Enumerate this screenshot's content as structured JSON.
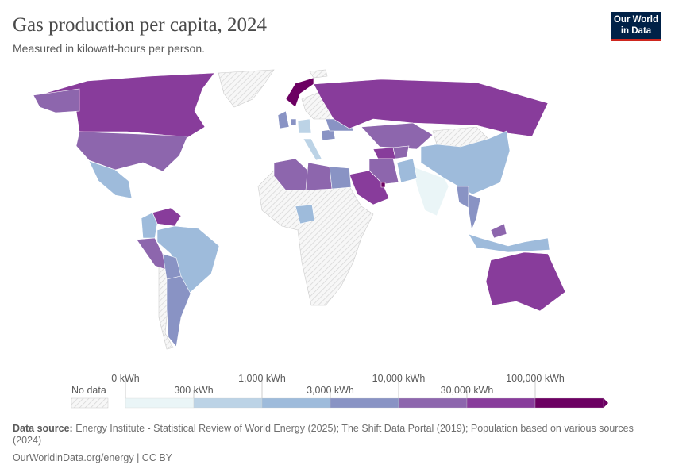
{
  "header": {
    "title": "Gas production per capita, 2024",
    "subtitle": "Measured in kilowatt-hours per person.",
    "logo_line1": "Our World",
    "logo_line2": "in Data"
  },
  "chart_data": {
    "type": "map",
    "title": "Gas production per capita, 2024",
    "subtitle": "Measured in kilowatt-hours per person.",
    "unit": "kWh",
    "no_data_label": "No data",
    "bins": [
      {
        "from": "0 kWh",
        "to": "300 kWh",
        "color": "#eaf5f7"
      },
      {
        "from": "300 kWh",
        "to": "1,000 kWh",
        "color": "#bcd3e6"
      },
      {
        "from": "1,000 kWh",
        "to": "3,000 kWh",
        "color": "#9ebbdb"
      },
      {
        "from": "3,000 kWh",
        "to": "10,000 kWh",
        "color": "#8993c4"
      },
      {
        "from": "10,000 kWh",
        "to": "30,000 kWh",
        "color": "#8d66ad"
      },
      {
        "from": "30,000 kWh",
        "to": "100,000 kWh",
        "color": "#883c9b"
      },
      {
        "from": "100,000 kWh",
        "to": "",
        "color": "#6c0062"
      }
    ],
    "tick_labels_top": [
      "0 kWh",
      "1,000 kWh",
      "10,000 kWh",
      "100,000 kWh"
    ],
    "tick_labels_bottom": [
      "300 kWh",
      "3,000 kWh",
      "30,000 kWh"
    ],
    "countries": [
      {
        "name": "Canada",
        "bin": 5
      },
      {
        "name": "United States",
        "bin": 4
      },
      {
        "name": "Mexico",
        "bin": 2
      },
      {
        "name": "Venezuela",
        "bin": 5
      },
      {
        "name": "Colombia",
        "bin": 2
      },
      {
        "name": "Brazil",
        "bin": 2
      },
      {
        "name": "Peru",
        "bin": 4
      },
      {
        "name": "Bolivia",
        "bin": 3
      },
      {
        "name": "Argentina",
        "bin": 3
      },
      {
        "name": "Norway",
        "bin": 6
      },
      {
        "name": "United Kingdom",
        "bin": 3
      },
      {
        "name": "Netherlands",
        "bin": 3
      },
      {
        "name": "Germany",
        "bin": 1
      },
      {
        "name": "Italy",
        "bin": 1
      },
      {
        "name": "Romania",
        "bin": 3
      },
      {
        "name": "Ukraine",
        "bin": 3
      },
      {
        "name": "Russia",
        "bin": 5
      },
      {
        "name": "Kazakhstan",
        "bin": 4
      },
      {
        "name": "Turkmenistan",
        "bin": 5
      },
      {
        "name": "Uzbekistan",
        "bin": 4
      },
      {
        "name": "China",
        "bin": 2
      },
      {
        "name": "India",
        "bin": 0
      },
      {
        "name": "Pakistan",
        "bin": 2
      },
      {
        "name": "Iran",
        "bin": 4
      },
      {
        "name": "Saudi Arabia",
        "bin": 5
      },
      {
        "name": "Qatar",
        "bin": 6
      },
      {
        "name": "Algeria",
        "bin": 4
      },
      {
        "name": "Libya",
        "bin": 4
      },
      {
        "name": "Egypt",
        "bin": 3
      },
      {
        "name": "Nigeria",
        "bin": 2
      },
      {
        "name": "Thailand",
        "bin": 3
      },
      {
        "name": "Myanmar",
        "bin": 3
      },
      {
        "name": "Malaysia",
        "bin": 4
      },
      {
        "name": "Indonesia",
        "bin": 2
      },
      {
        "name": "Australia",
        "bin": 5
      }
    ]
  },
  "footer": {
    "source_label": "Data source:",
    "source_text": " Energy Institute - Statistical Review of World Energy (2025); The Shift Data Portal (2019); Population based on various sources (2024)",
    "credit": "OurWorldinData.org/energy | CC BY"
  }
}
